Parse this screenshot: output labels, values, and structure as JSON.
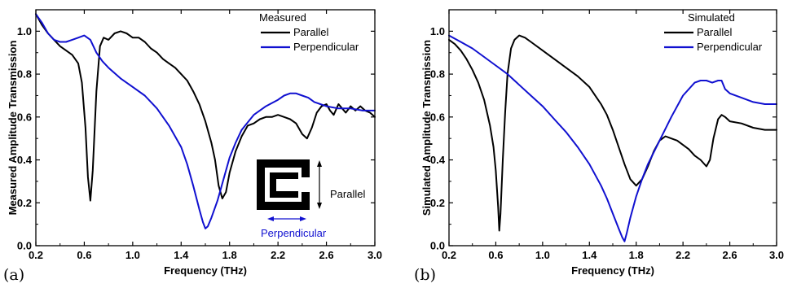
{
  "chart_data": [
    {
      "type": "line",
      "panel_label": "(a)",
      "title": "Measured",
      "xlabel": "Frequency (THz)",
      "ylabel": "Measured Amplitude Transmission",
      "xlim": [
        0.2,
        3.0
      ],
      "ylim": [
        0.0,
        1.1
      ],
      "xticks": [
        "0.2",
        "0.6",
        "1.0",
        "1.4",
        "1.8",
        "2.2",
        "2.6",
        "3.0"
      ],
      "yticks": [
        "0.0",
        "0.2",
        "0.4",
        "0.6",
        "0.8",
        "1.0"
      ],
      "legend_position": "top-right",
      "series": [
        {
          "name": "Parallel",
          "color": "#000000",
          "x": [
            0.2,
            0.25,
            0.3,
            0.35,
            0.4,
            0.45,
            0.5,
            0.55,
            0.58,
            0.61,
            0.63,
            0.65,
            0.67,
            0.7,
            0.73,
            0.76,
            0.8,
            0.85,
            0.9,
            0.95,
            1.0,
            1.05,
            1.1,
            1.15,
            1.2,
            1.25,
            1.3,
            1.35,
            1.4,
            1.45,
            1.5,
            1.55,
            1.6,
            1.65,
            1.68,
            1.71,
            1.74,
            1.77,
            1.8,
            1.85,
            1.9,
            1.95,
            2.0,
            2.05,
            2.1,
            2.15,
            2.2,
            2.25,
            2.3,
            2.35,
            2.4,
            2.44,
            2.48,
            2.52,
            2.56,
            2.6,
            2.63,
            2.66,
            2.7,
            2.73,
            2.76,
            2.8,
            2.84,
            2.88,
            2.92,
            2.96,
            3.0
          ],
          "y": [
            1.08,
            1.03,
            0.99,
            0.96,
            0.93,
            0.91,
            0.89,
            0.85,
            0.76,
            0.55,
            0.32,
            0.21,
            0.35,
            0.72,
            0.93,
            0.97,
            0.96,
            0.99,
            1.0,
            0.99,
            0.97,
            0.97,
            0.95,
            0.92,
            0.9,
            0.87,
            0.85,
            0.83,
            0.8,
            0.77,
            0.72,
            0.66,
            0.58,
            0.48,
            0.4,
            0.28,
            0.22,
            0.25,
            0.34,
            0.44,
            0.51,
            0.56,
            0.57,
            0.59,
            0.6,
            0.6,
            0.61,
            0.6,
            0.59,
            0.57,
            0.52,
            0.5,
            0.55,
            0.62,
            0.65,
            0.66,
            0.63,
            0.61,
            0.66,
            0.64,
            0.62,
            0.65,
            0.63,
            0.65,
            0.63,
            0.62,
            0.6
          ]
        },
        {
          "name": "Perpendicular",
          "color": "#1010d0",
          "x": [
            0.2,
            0.25,
            0.3,
            0.35,
            0.4,
            0.45,
            0.5,
            0.55,
            0.6,
            0.65,
            0.7,
            0.75,
            0.8,
            0.9,
            1.0,
            1.1,
            1.2,
            1.3,
            1.4,
            1.45,
            1.5,
            1.55,
            1.58,
            1.6,
            1.62,
            1.65,
            1.7,
            1.75,
            1.8,
            1.85,
            1.9,
            2.0,
            2.1,
            2.2,
            2.25,
            2.3,
            2.35,
            2.4,
            2.45,
            2.5,
            2.55,
            2.6,
            2.7,
            2.8,
            2.9,
            3.0
          ],
          "y": [
            1.08,
            1.04,
            0.99,
            0.96,
            0.95,
            0.95,
            0.96,
            0.97,
            0.98,
            0.96,
            0.9,
            0.86,
            0.83,
            0.78,
            0.74,
            0.7,
            0.64,
            0.56,
            0.46,
            0.38,
            0.28,
            0.17,
            0.11,
            0.08,
            0.09,
            0.13,
            0.21,
            0.31,
            0.41,
            0.48,
            0.54,
            0.61,
            0.65,
            0.68,
            0.7,
            0.71,
            0.71,
            0.7,
            0.69,
            0.67,
            0.66,
            0.65,
            0.64,
            0.64,
            0.63,
            0.63
          ]
        }
      ],
      "inset": {
        "vertical_label": "Parallel",
        "horizontal_label": "Perpendicular",
        "arrow_color": "#1010d0"
      }
    },
    {
      "type": "line",
      "panel_label": "(b)",
      "title": "Simulated",
      "xlabel": "Frequency (THz)",
      "ylabel": "Simulated Amplitude Transmission",
      "xlim": [
        0.2,
        3.0
      ],
      "ylim": [
        0.0,
        1.1
      ],
      "xticks": [
        "0.2",
        "0.6",
        "1.0",
        "1.4",
        "1.8",
        "2.2",
        "2.6",
        "3.0"
      ],
      "yticks": [
        "0.0",
        "0.2",
        "0.4",
        "0.6",
        "0.8",
        "1.0"
      ],
      "legend_position": "top-right",
      "series": [
        {
          "name": "Parallel",
          "color": "#000000",
          "x": [
            0.2,
            0.25,
            0.3,
            0.35,
            0.4,
            0.45,
            0.5,
            0.55,
            0.58,
            0.6,
            0.62,
            0.63,
            0.64,
            0.66,
            0.68,
            0.7,
            0.73,
            0.76,
            0.8,
            0.85,
            0.9,
            1.0,
            1.1,
            1.2,
            1.3,
            1.4,
            1.5,
            1.55,
            1.6,
            1.65,
            1.7,
            1.75,
            1.8,
            1.85,
            1.9,
            1.95,
            2.0,
            2.05,
            2.1,
            2.15,
            2.2,
            2.25,
            2.3,
            2.35,
            2.4,
            2.43,
            2.46,
            2.5,
            2.53,
            2.56,
            2.6,
            2.7,
            2.8,
            2.9,
            3.0
          ],
          "y": [
            0.96,
            0.94,
            0.91,
            0.87,
            0.82,
            0.76,
            0.68,
            0.56,
            0.46,
            0.35,
            0.18,
            0.07,
            0.15,
            0.4,
            0.62,
            0.8,
            0.92,
            0.96,
            0.98,
            0.97,
            0.95,
            0.91,
            0.87,
            0.83,
            0.79,
            0.74,
            0.66,
            0.61,
            0.54,
            0.46,
            0.38,
            0.31,
            0.28,
            0.31,
            0.37,
            0.44,
            0.49,
            0.51,
            0.5,
            0.49,
            0.47,
            0.45,
            0.42,
            0.4,
            0.37,
            0.4,
            0.5,
            0.59,
            0.61,
            0.6,
            0.58,
            0.57,
            0.55,
            0.54,
            0.54
          ]
        },
        {
          "name": "Perpendicular",
          "color": "#1010d0",
          "x": [
            0.2,
            0.3,
            0.4,
            0.5,
            0.6,
            0.7,
            0.8,
            0.9,
            1.0,
            1.1,
            1.2,
            1.3,
            1.4,
            1.5,
            1.55,
            1.6,
            1.65,
            1.68,
            1.7,
            1.72,
            1.75,
            1.8,
            1.85,
            1.9,
            2.0,
            2.1,
            2.2,
            2.3,
            2.35,
            2.4,
            2.45,
            2.5,
            2.53,
            2.56,
            2.6,
            2.7,
            2.8,
            2.9,
            3.0
          ],
          "y": [
            0.98,
            0.95,
            0.92,
            0.88,
            0.84,
            0.8,
            0.75,
            0.7,
            0.65,
            0.59,
            0.53,
            0.46,
            0.38,
            0.28,
            0.22,
            0.15,
            0.08,
            0.04,
            0.02,
            0.06,
            0.13,
            0.23,
            0.31,
            0.38,
            0.49,
            0.6,
            0.7,
            0.76,
            0.77,
            0.77,
            0.76,
            0.77,
            0.77,
            0.73,
            0.71,
            0.69,
            0.67,
            0.66,
            0.66
          ]
        }
      ]
    }
  ]
}
